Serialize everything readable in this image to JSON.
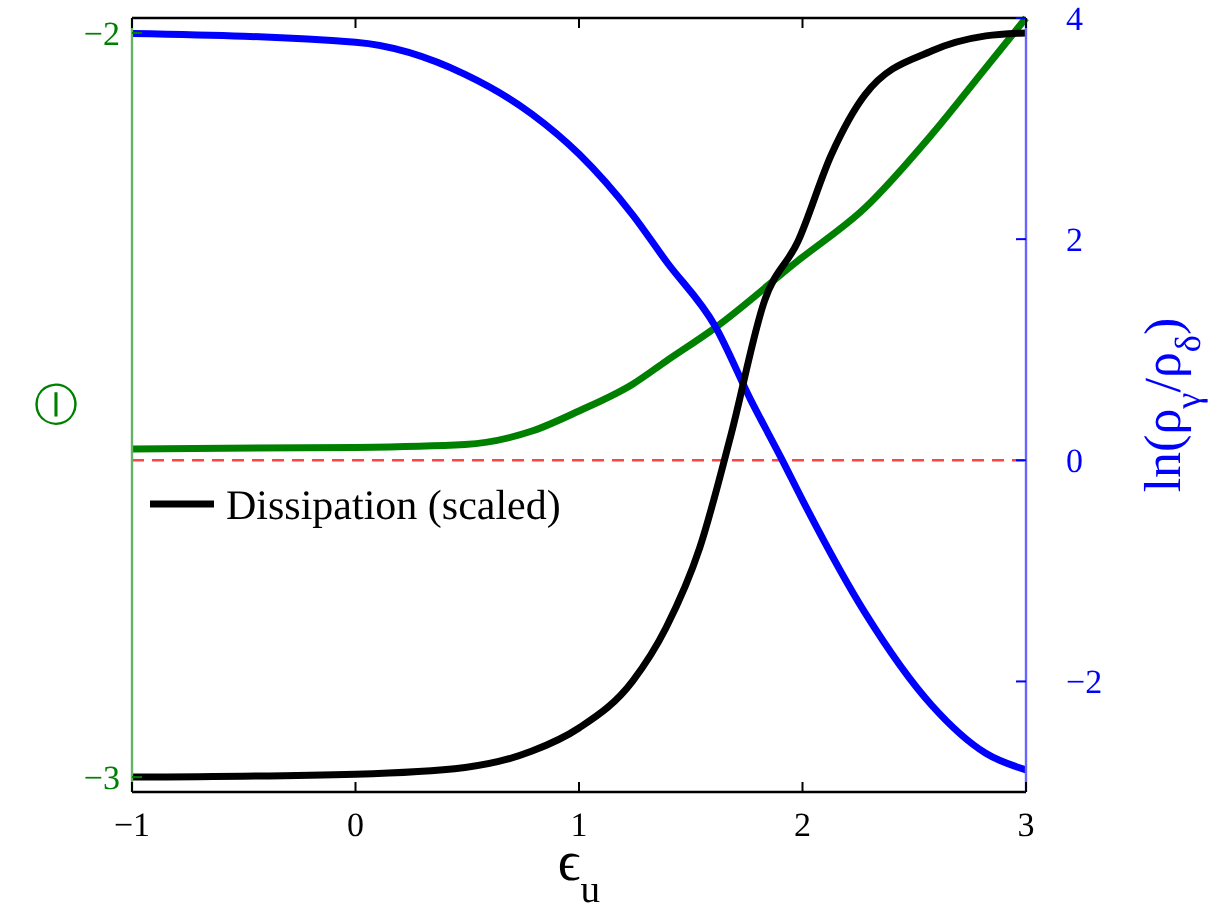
{
  "chart_data": {
    "type": "line",
    "xlabel": "ϵ$_{u}$",
    "ylabel": "Ⓘ",
    "y2label": "ln(ρ$_{γ}$/ρ$_{δ}$)",
    "xlim": [
      -1,
      3
    ],
    "xticks": [
      -1,
      0,
      1,
      2,
      3
    ],
    "ylim": [
      -3.02,
      -1.98
    ],
    "yticks": [
      -3,
      -2
    ],
    "y2lim": [
      -3,
      4
    ],
    "y2ticks": [
      -2,
      0,
      2,
      4
    ],
    "legend": "left",
    "line_style": "solid",
    "marker": "none",
    "ref_lines": [
      {
        "axis": "y2",
        "value": 0,
        "color": "#ff4444",
        "line_style": "dashed"
      }
    ],
    "series": [
      {
        "color": "#008000",
        "x": [
          -1,
          0,
          0.49,
          0.79,
          1,
          1.24,
          1.39,
          1.61,
          1.98,
          2.28,
          2.58,
          2.82,
          3
        ],
        "values": [
          -2.559,
          -2.557,
          -2.553,
          -2.535,
          -2.508,
          -2.472,
          -2.441,
          -2.396,
          -2.306,
          -2.235,
          -2.136,
          -2.047,
          -1.98
        ]
      },
      {
        "color": "#0000ff",
        "axis": "y2",
        "x": [
          -1,
          0,
          0.49,
          0.79,
          1,
          1.24,
          1.39,
          1.61,
          1.77,
          1.91,
          2,
          2.28,
          2.58,
          2.82,
          3
        ],
        "values": [
          3.86,
          3.78,
          3.49,
          3.13,
          2.77,
          2.22,
          1.8,
          1.21,
          0.54,
          0,
          -0.36,
          -1.38,
          -2.22,
          -2.65,
          -2.8
        ]
      },
      {
        "name": "Dissipation (scaled)",
        "color": "#000000",
        "x": [
          -1,
          0,
          0.49,
          0.79,
          1,
          1.24,
          1.39,
          1.54,
          1.68,
          1.83,
          1.98,
          2.13,
          2.28,
          2.58,
          2.82,
          3
        ],
        "values": [
          -3,
          -2.996,
          -2.987,
          -2.965,
          -2.934,
          -2.871,
          -2.799,
          -2.692,
          -2.54,
          -2.36,
          -2.28,
          -2.163,
          -2.083,
          -2.024,
          -2.004,
          -2
        ]
      }
    ]
  }
}
